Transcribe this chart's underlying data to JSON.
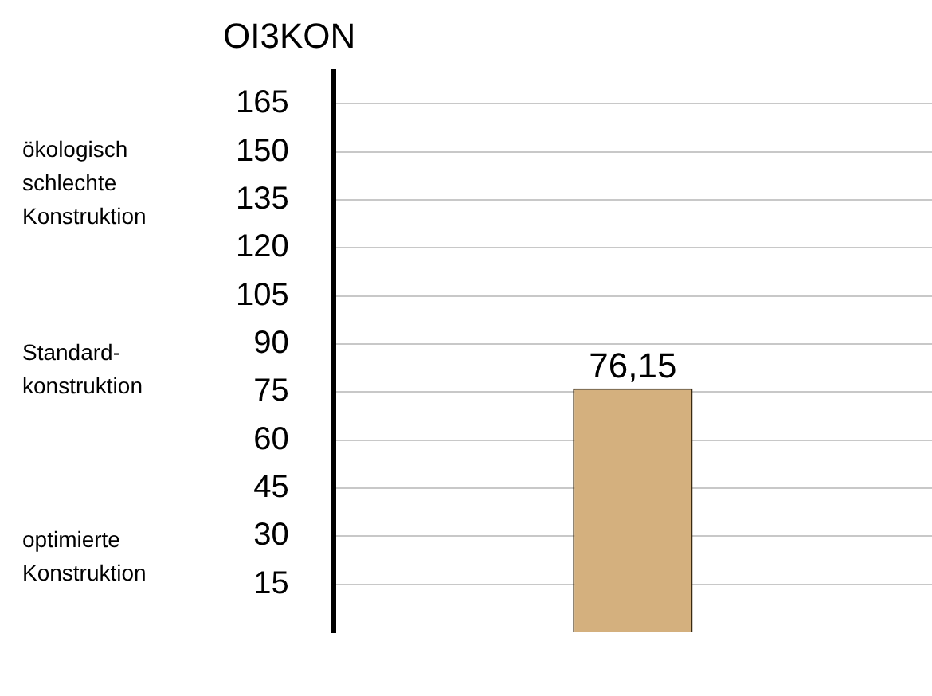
{
  "chart_data": {
    "type": "bar",
    "title": "OI3KON",
    "categories": [
      null
    ],
    "values": [
      76.15
    ],
    "color": "#d4b07e",
    "value_labels": [
      "76,15"
    ],
    "ylim": [
      0,
      175
    ],
    "yticks": [
      15,
      30,
      45,
      60,
      75,
      90,
      105,
      120,
      135,
      150,
      165
    ],
    "grid": "y",
    "annotations": [
      "ökologisch schlechte Konstruktion",
      "Standard-konstruktion",
      "optimierte Konstruktion"
    ]
  }
}
